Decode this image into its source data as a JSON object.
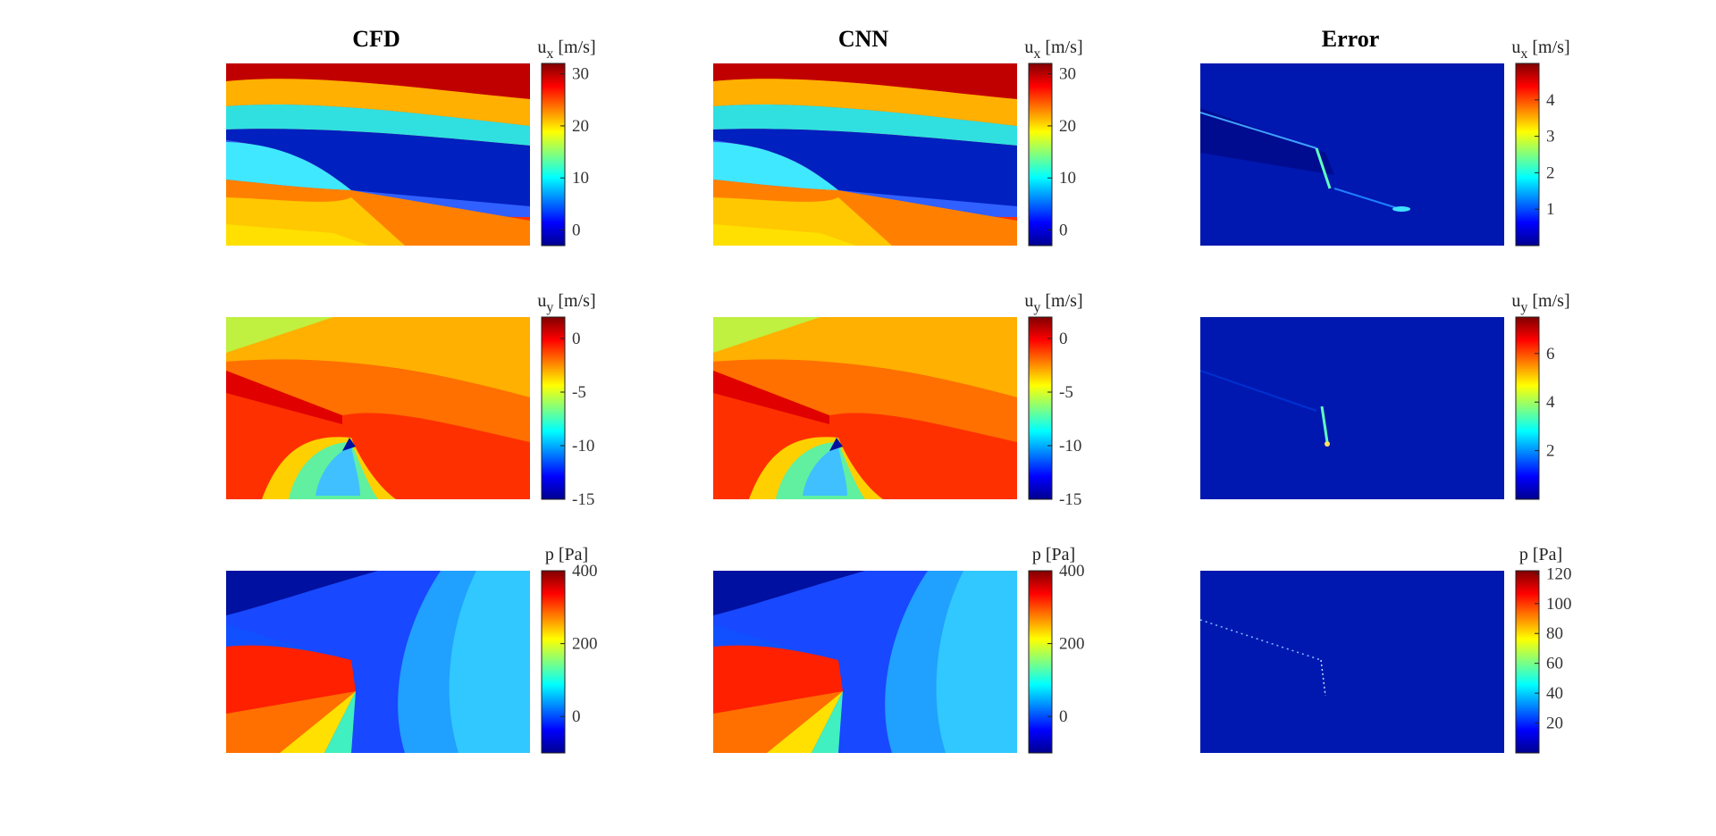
{
  "column_titles": [
    "CFD",
    "CNN",
    "Error"
  ],
  "row_fields": [
    {
      "var": "u",
      "sub": "x",
      "unit": "[m/s]"
    },
    {
      "var": "u",
      "sub": "y",
      "unit": "[m/s]"
    },
    {
      "var": "p",
      "sub": "",
      "unit": "[Pa]"
    }
  ],
  "colormap": "jet",
  "chart_data": [
    {
      "type": "heatmap",
      "title": "CFD",
      "field": "u_x",
      "colorbar": {
        "label": "u_x [m/s]",
        "range": [
          -3,
          32
        ],
        "ticks": [
          0,
          10,
          20,
          30
        ]
      }
    },
    {
      "type": "heatmap",
      "title": "CNN",
      "field": "u_x",
      "colorbar": {
        "label": "u_x [m/s]",
        "range": [
          -3,
          32
        ],
        "ticks": [
          0,
          10,
          20,
          30
        ]
      }
    },
    {
      "type": "heatmap",
      "title": "Error",
      "field": "u_x",
      "colorbar": {
        "label": "u_x [m/s]",
        "range": [
          0,
          5
        ],
        "ticks": [
          1,
          2,
          3,
          4
        ]
      }
    },
    {
      "type": "heatmap",
      "title": "",
      "field": "u_y",
      "colorbar": {
        "label": "u_y [m/s]",
        "range": [
          -15,
          2
        ],
        "ticks": [
          0,
          -5,
          -10,
          -15
        ]
      }
    },
    {
      "type": "heatmap",
      "title": "",
      "field": "u_y",
      "colorbar": {
        "label": "u_y [m/s]",
        "range": [
          -15,
          2
        ],
        "ticks": [
          0,
          -5,
          -10,
          -15
        ]
      }
    },
    {
      "type": "heatmap",
      "title": "",
      "field": "u_y",
      "colorbar": {
        "label": "u_y [m/s]",
        "range": [
          0,
          7.5
        ],
        "ticks": [
          2,
          4,
          6
        ]
      }
    },
    {
      "type": "heatmap",
      "title": "",
      "field": "p",
      "colorbar": {
        "label": "p [Pa]",
        "range": [
          -100,
          400
        ],
        "ticks": [
          0,
          200,
          400
        ]
      }
    },
    {
      "type": "heatmap",
      "title": "",
      "field": "p",
      "colorbar": {
        "label": "p [Pa]",
        "range": [
          -100,
          400
        ],
        "ticks": [
          0,
          200,
          400
        ]
      }
    },
    {
      "type": "heatmap",
      "title": "",
      "field": "p",
      "colorbar": {
        "label": "p [Pa]",
        "range": [
          0,
          122
        ],
        "ticks": [
          20,
          40,
          60,
          80,
          100,
          120
        ]
      }
    }
  ]
}
